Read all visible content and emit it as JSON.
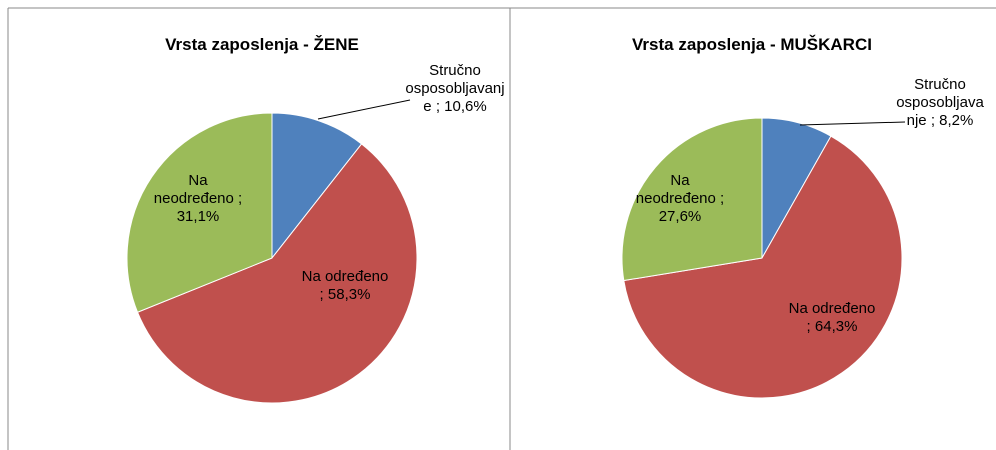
{
  "chart_data": [
    {
      "type": "pie",
      "title": "Vrsta zaposlenja - ŽENE",
      "categories": [
        "Stručno osposobljavanje",
        "Na određeno",
        "Na neodređeno"
      ],
      "values": [
        10.6,
        58.3,
        31.1
      ],
      "value_labels": [
        "10,6%",
        "58,3%",
        "31,1%"
      ],
      "label_separator": ";",
      "colors": [
        "#4f81bd",
        "#c0504d",
        "#9bbb59"
      ]
    },
    {
      "type": "pie",
      "title": "Vrsta zaposlenja - MUŠKARCI",
      "categories": [
        "Stručno osposobljavanje",
        "Na određeno",
        "Na neodređeno"
      ],
      "values": [
        8.2,
        64.3,
        27.6
      ],
      "value_labels": [
        "8,2%",
        "64,3%",
        "27,6%"
      ],
      "label_separator": ";",
      "colors": [
        "#4f81bd",
        "#c0504d",
        "#9bbb59"
      ]
    }
  ]
}
